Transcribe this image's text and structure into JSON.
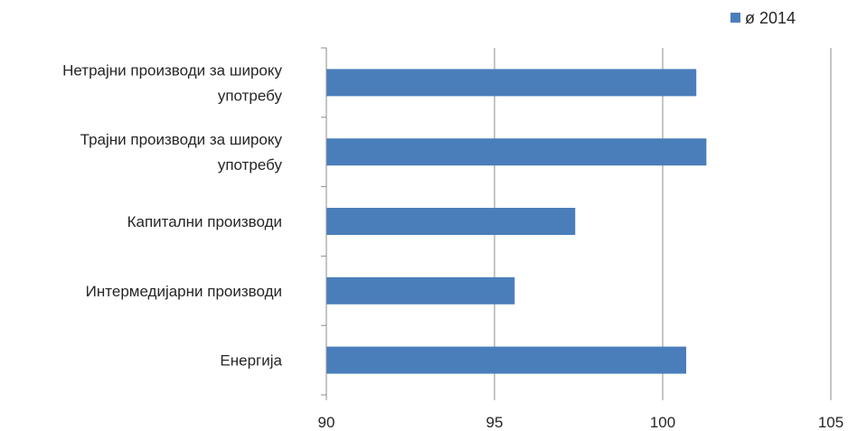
{
  "chart_data": {
    "type": "bar",
    "orientation": "horizontal",
    "categories": [
      [
        "Нетрајни производи за широку",
        "употребу"
      ],
      [
        "Трајни производи за широку",
        "употребу"
      ],
      [
        "Капитални производи"
      ],
      [
        "Интермедијарни производи"
      ],
      [
        "Енергија"
      ]
    ],
    "series": [
      {
        "name": "ø 2014",
        "color": "#4a7ebb",
        "values": [
          101.0,
          101.3,
          97.4,
          95.6,
          100.7
        ]
      }
    ],
    "xlim": [
      90,
      105
    ],
    "xticks": [
      "90",
      "95",
      "100",
      "105"
    ],
    "grid": true,
    "legend": "top-right",
    "title": "",
    "xlabel": "",
    "ylabel": ""
  }
}
